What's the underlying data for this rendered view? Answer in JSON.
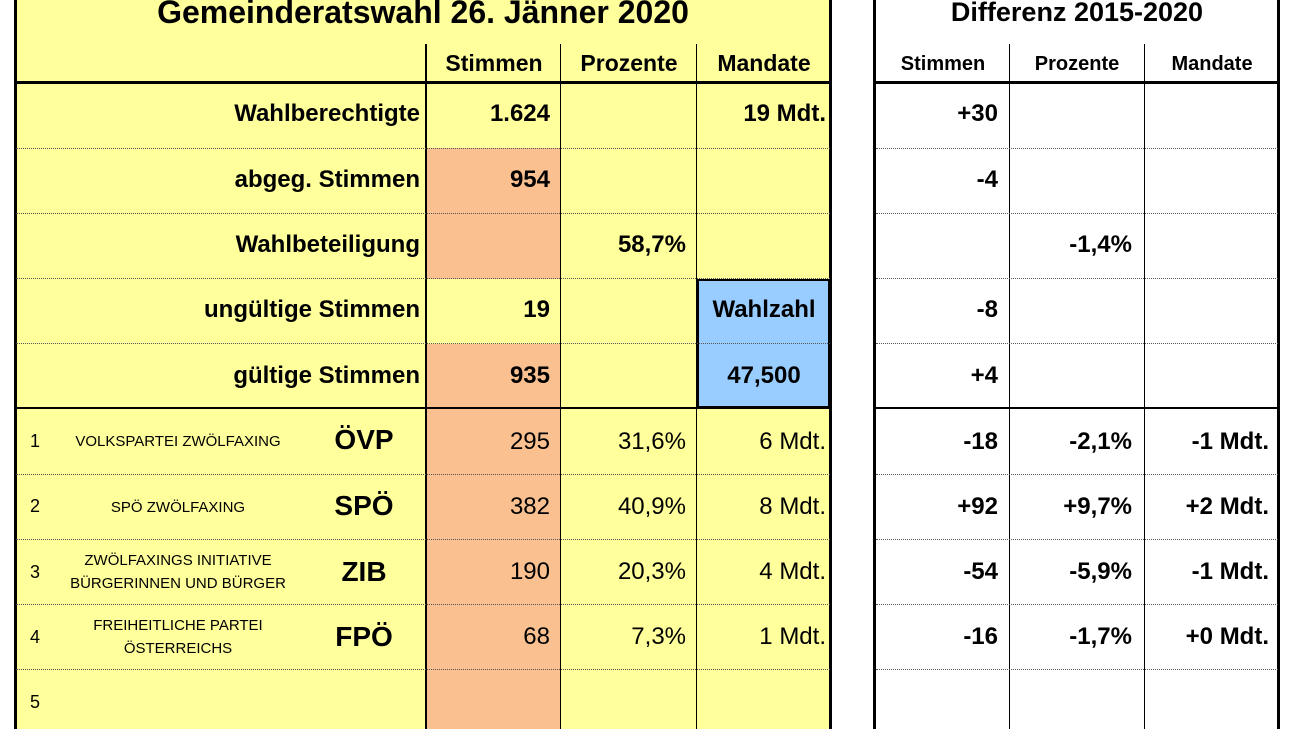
{
  "left": {
    "title": "Gemeinderatswahl 26. Jänner 2020",
    "headers": [
      "Stimmen",
      "Prozente",
      "Mandate"
    ],
    "summary": [
      {
        "label": "Wahlberechtigte",
        "stimmen": "1.624",
        "prozente": "",
        "mandate": "19 Mdt."
      },
      {
        "label": "abgeg. Stimmen",
        "stimmen": "954",
        "prozente": "",
        "mandate": ""
      },
      {
        "label": "Wahlbeteiligung",
        "stimmen": "",
        "prozente": "58,7%",
        "mandate": ""
      },
      {
        "label": "ungültige Stimmen",
        "stimmen": "19",
        "prozente": "",
        "mandate": "Wahlzahl"
      },
      {
        "label": "gültige Stimmen",
        "stimmen": "935",
        "prozente": "",
        "mandate": "47,500"
      }
    ],
    "parties": [
      {
        "nr": "1",
        "name1": "VOLKSPARTEI ZWÖLFAXING",
        "name2": "",
        "abbr": "ÖVP",
        "stimmen": "295",
        "prozente": "31,6%",
        "mandate": "6 Mdt."
      },
      {
        "nr": "2",
        "name1": "SPÖ ZWÖLFAXING",
        "name2": "",
        "abbr": "SPÖ",
        "stimmen": "382",
        "prozente": "40,9%",
        "mandate": "8 Mdt."
      },
      {
        "nr": "3",
        "name1": "ZWÖLFAXINGS INITIATIVE",
        "name2": "BÜRGERINNEN UND BÜRGER",
        "abbr": "ZIB",
        "stimmen": "190",
        "prozente": "20,3%",
        "mandate": "4 Mdt."
      },
      {
        "nr": "4",
        "name1": "FREIHEITLICHE PARTEI",
        "name2": "ÖSTERREICHS",
        "abbr": "FPÖ",
        "stimmen": "68",
        "prozente": "7,3%",
        "mandate": "1 Mdt."
      },
      {
        "nr": "5",
        "name1": "",
        "name2": "",
        "abbr": "",
        "stimmen": "",
        "prozente": "",
        "mandate": ""
      }
    ]
  },
  "right": {
    "title": "Differenz 2015-2020",
    "headers": [
      "Stimmen",
      "Prozente",
      "Mandate"
    ],
    "rows": [
      {
        "stimmen": "+30",
        "prozente": "",
        "mandate": ""
      },
      {
        "stimmen": "-4",
        "prozente": "",
        "mandate": ""
      },
      {
        "stimmen": "",
        "prozente": "-1,4%",
        "mandate": ""
      },
      {
        "stimmen": "-8",
        "prozente": "",
        "mandate": ""
      },
      {
        "stimmen": "+4",
        "prozente": "",
        "mandate": ""
      },
      {
        "stimmen": "-18",
        "prozente": "-2,1%",
        "mandate": "-1 Mdt."
      },
      {
        "stimmen": "+92",
        "prozente": "+9,7%",
        "mandate": "+2 Mdt."
      },
      {
        "stimmen": "-54",
        "prozente": "-5,9%",
        "mandate": "-1 Mdt."
      },
      {
        "stimmen": "-16",
        "prozente": "-1,7%",
        "mandate": "+0 Mdt."
      },
      {
        "stimmen": "",
        "prozente": "",
        "mandate": ""
      }
    ]
  }
}
